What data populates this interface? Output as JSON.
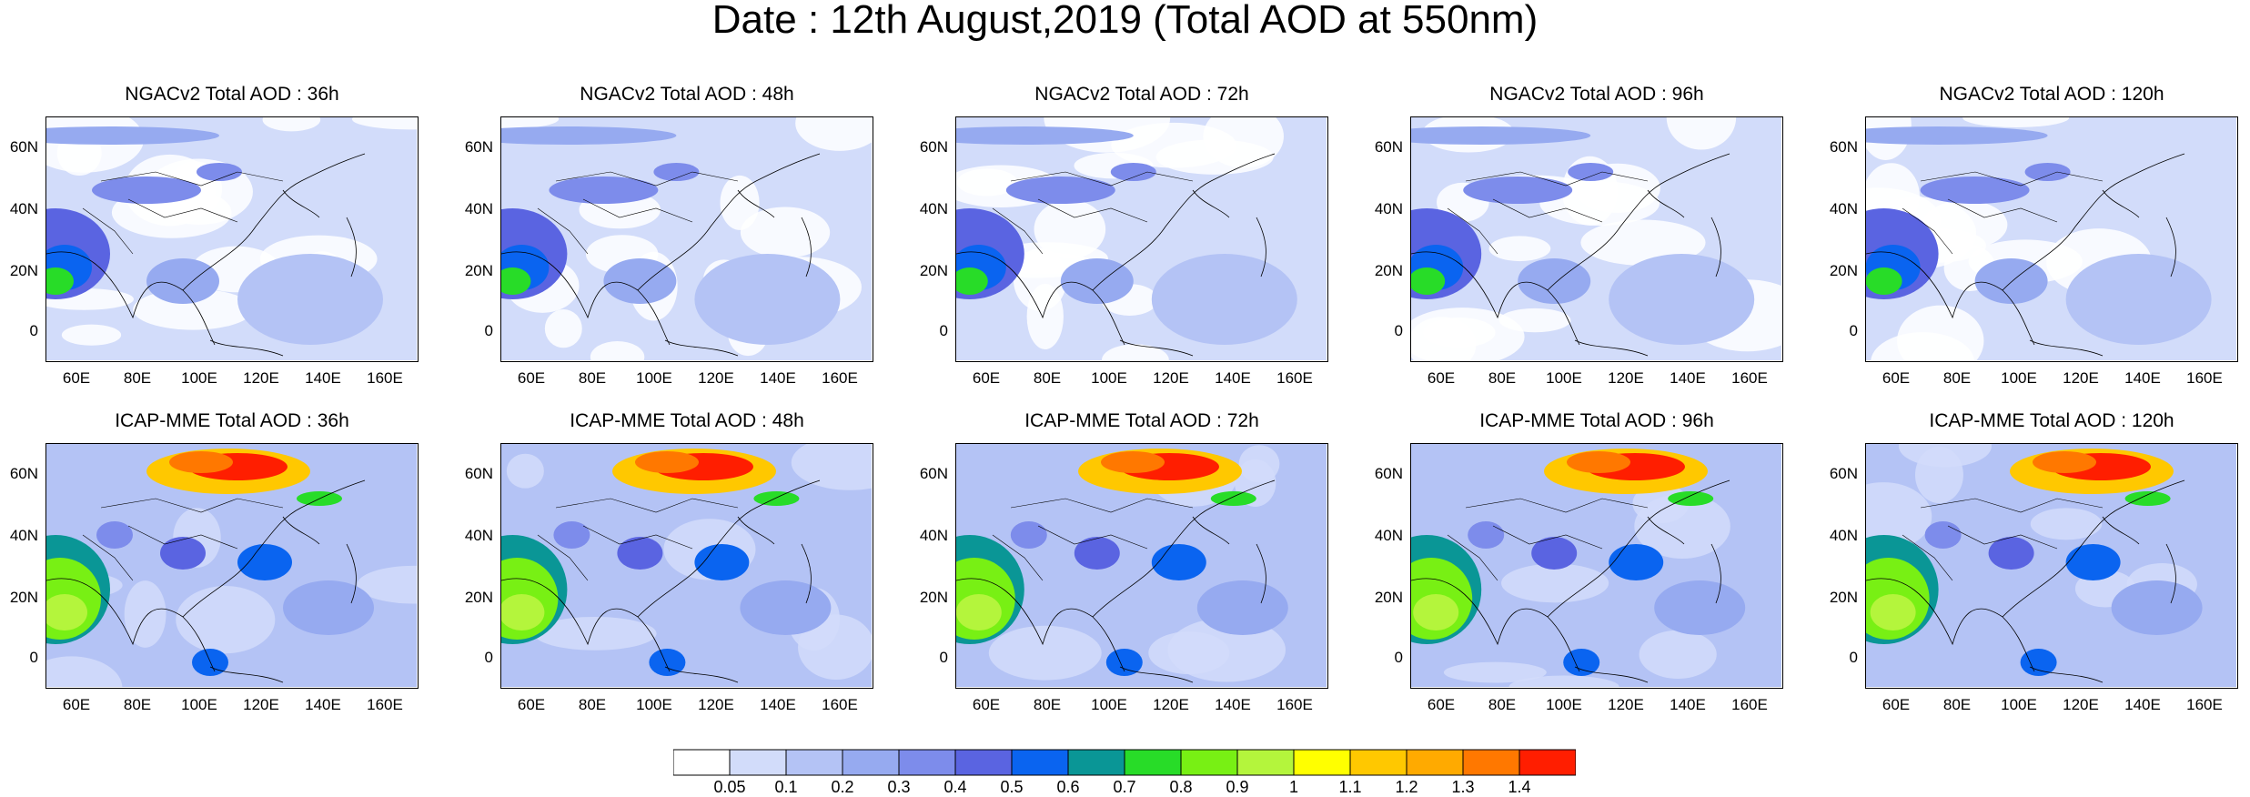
{
  "title": "Date : 12th August,2019 (Total AOD at 550nm)",
  "lat_labels": [
    "60N",
    "40N",
    "20N",
    "0"
  ],
  "lon_labels": [
    "60E",
    "80E",
    "100E",
    "120E",
    "140E",
    "160E"
  ],
  "panels": [
    {
      "title": "NGACv2 Total AOD : 36h",
      "model": "NGACv2",
      "lead": "36h"
    },
    {
      "title": "NGACv2 Total AOD : 48h",
      "model": "NGACv2",
      "lead": "48h"
    },
    {
      "title": "NGACv2 Total AOD : 72h",
      "model": "NGACv2",
      "lead": "72h"
    },
    {
      "title": "NGACv2 Total AOD : 96h",
      "model": "NGACv2",
      "lead": "96h"
    },
    {
      "title": "NGACv2 Total AOD : 120h",
      "model": "NGACv2",
      "lead": "120h"
    },
    {
      "title": "ICAP-MME Total AOD : 36h",
      "model": "ICAP-MME",
      "lead": "36h"
    },
    {
      "title": "ICAP-MME Total AOD : 48h",
      "model": "ICAP-MME",
      "lead": "48h"
    },
    {
      "title": "ICAP-MME Total AOD : 72h",
      "model": "ICAP-MME",
      "lead": "72h"
    },
    {
      "title": "ICAP-MME Total AOD : 96h",
      "model": "ICAP-MME",
      "lead": "96h"
    },
    {
      "title": "ICAP-MME Total AOD : 120h",
      "model": "ICAP-MME",
      "lead": "120h"
    }
  ],
  "colorbar": {
    "labels": [
      "0.05",
      "0.1",
      "0.2",
      "0.3",
      "0.4",
      "0.5",
      "0.6",
      "0.7",
      "0.8",
      "0.9",
      "1",
      "1.1",
      "1.2",
      "1.3",
      "1.4"
    ],
    "colors": [
      "#ffffff",
      "#d2dcfa",
      "#b4c3f5",
      "#96aaf0",
      "#7d8ceb",
      "#5a64e1",
      "#0a64f0",
      "#0a9696",
      "#28dc28",
      "#78f014",
      "#b4f53c",
      "#ffff00",
      "#ffc800",
      "#ffaa00",
      "#ff7800",
      "#ff1e00"
    ]
  }
}
